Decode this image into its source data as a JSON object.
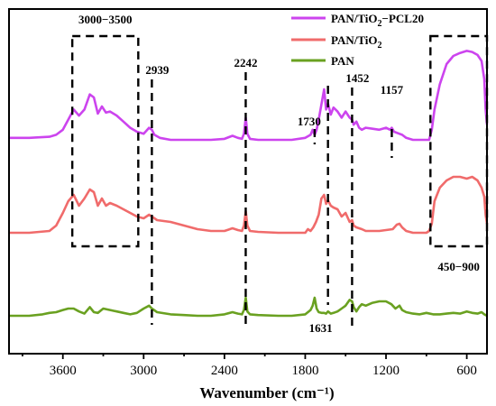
{
  "chart_data": {
    "type": "line",
    "title": "",
    "xlabel": "Wavenumber (cm⁻¹)",
    "ylabel": "",
    "xlim": [
      4000,
      450
    ],
    "x_reversed": true,
    "x_ticks": [
      "3600",
      "3000",
      "2400",
      "1800",
      "1200",
      "600"
    ],
    "x_tick_values": [
      3600,
      3000,
      2400,
      1800,
      1200,
      600
    ],
    "legend_position": "top-right",
    "series": [
      {
        "name": "PAN/TiO₂−PCL20",
        "legend_main": "PAN/TiO",
        "legend_sub": "2",
        "legend_tail": "−PCL20",
        "color": "#cc44ee",
        "x": [
          4000,
          3850,
          3700,
          3650,
          3600,
          3560,
          3520,
          3480,
          3440,
          3400,
          3370,
          3340,
          3310,
          3280,
          3250,
          3200,
          3150,
          3100,
          3050,
          3000,
          2960,
          2939,
          2920,
          2880,
          2800,
          2700,
          2600,
          2500,
          2400,
          2340,
          2300,
          2270,
          2255,
          2242,
          2230,
          2210,
          2150,
          2000,
          1900,
          1800,
          1760,
          1745,
          1730,
          1715,
          1700,
          1680,
          1660,
          1645,
          1631,
          1610,
          1590,
          1560,
          1530,
          1500,
          1470,
          1452,
          1440,
          1420,
          1400,
          1380,
          1350,
          1300,
          1250,
          1200,
          1170,
          1157,
          1140,
          1100,
          1080,
          1050,
          1000,
          950,
          900,
          880,
          860,
          840,
          800,
          750,
          700,
          650,
          600,
          560,
          520,
          490,
          470,
          460,
          450
        ],
        "y": [
          0.02,
          0.02,
          0.03,
          0.05,
          0.1,
          0.2,
          0.3,
          0.24,
          0.3,
          0.45,
          0.42,
          0.26,
          0.33,
          0.27,
          0.28,
          0.24,
          0.18,
          0.12,
          0.08,
          0.06,
          0.12,
          0.1,
          0.05,
          0.02,
          0.0,
          0.0,
          0.0,
          0.0,
          0.01,
          0.04,
          0.02,
          0.01,
          0.06,
          0.22,
          0.06,
          0.01,
          0.0,
          0.0,
          0.0,
          0.02,
          0.05,
          0.1,
          0.05,
          0.1,
          0.2,
          0.35,
          0.5,
          0.3,
          0.36,
          0.25,
          0.32,
          0.28,
          0.22,
          0.28,
          0.22,
          0.2,
          0.15,
          0.18,
          0.12,
          0.1,
          0.12,
          0.11,
          0.1,
          0.12,
          0.1,
          0.12,
          0.08,
          0.06,
          0.05,
          0.02,
          0.0,
          0.0,
          0.0,
          0.0,
          0.1,
          0.3,
          0.55,
          0.75,
          0.83,
          0.86,
          0.88,
          0.87,
          0.84,
          0.78,
          0.6,
          0.3,
          0.15
        ]
      },
      {
        "name": "PAN/TiO₂",
        "legend_main": "PAN/TiO",
        "legend_sub": "2",
        "legend_tail": "",
        "color": "#f06b6b",
        "x": [
          4000,
          3850,
          3700,
          3650,
          3600,
          3560,
          3520,
          3480,
          3440,
          3400,
          3370,
          3340,
          3310,
          3280,
          3250,
          3200,
          3150,
          3100,
          3050,
          3000,
          2960,
          2939,
          2900,
          2800,
          2700,
          2600,
          2500,
          2400,
          2340,
          2300,
          2270,
          2255,
          2242,
          2230,
          2210,
          2150,
          2000,
          1900,
          1800,
          1780,
          1760,
          1740,
          1720,
          1700,
          1680,
          1660,
          1645,
          1631,
          1610,
          1590,
          1560,
          1530,
          1500,
          1470,
          1452,
          1440,
          1420,
          1400,
          1380,
          1350,
          1300,
          1250,
          1200,
          1150,
          1120,
          1100,
          1080,
          1050,
          1000,
          950,
          900,
          880,
          860,
          840,
          800,
          750,
          700,
          650,
          600,
          560,
          520,
          490,
          470,
          460,
          450
        ],
        "y": [
          0.0,
          0.0,
          0.02,
          0.08,
          0.22,
          0.35,
          0.42,
          0.3,
          0.38,
          0.48,
          0.45,
          0.3,
          0.38,
          0.3,
          0.33,
          0.3,
          0.26,
          0.22,
          0.18,
          0.16,
          0.2,
          0.18,
          0.14,
          0.12,
          0.08,
          0.04,
          0.02,
          0.02,
          0.05,
          0.03,
          0.02,
          0.08,
          0.24,
          0.08,
          0.02,
          0.01,
          0.0,
          0.0,
          0.0,
          0.04,
          0.02,
          0.06,
          0.12,
          0.2,
          0.38,
          0.42,
          0.32,
          0.36,
          0.3,
          0.28,
          0.26,
          0.18,
          0.22,
          0.12,
          0.14,
          0.08,
          0.06,
          0.05,
          0.04,
          0.02,
          0.02,
          0.02,
          0.03,
          0.04,
          0.09,
          0.1,
          0.06,
          0.02,
          0.0,
          0.0,
          0.0,
          0.02,
          0.1,
          0.35,
          0.5,
          0.58,
          0.62,
          0.62,
          0.6,
          0.62,
          0.58,
          0.5,
          0.4,
          0.2,
          0.1
        ]
      },
      {
        "name": "PAN",
        "legend_main": "PAN",
        "legend_sub": "",
        "legend_tail": "",
        "color": "#6aa121",
        "x": [
          4000,
          3850,
          3750,
          3700,
          3650,
          3600,
          3560,
          3520,
          3480,
          3440,
          3400,
          3370,
          3340,
          3300,
          3250,
          3200,
          3150,
          3100,
          3050,
          3000,
          2960,
          2939,
          2900,
          2800,
          2700,
          2600,
          2500,
          2400,
          2340,
          2300,
          2270,
          2255,
          2242,
          2230,
          2210,
          2150,
          2000,
          1900,
          1800,
          1760,
          1745,
          1730,
          1715,
          1700,
          1680,
          1660,
          1645,
          1631,
          1610,
          1590,
          1560,
          1530,
          1500,
          1470,
          1452,
          1440,
          1420,
          1400,
          1380,
          1350,
          1300,
          1250,
          1200,
          1160,
          1130,
          1100,
          1080,
          1050,
          1000,
          950,
          900,
          850,
          800,
          750,
          700,
          650,
          600,
          560,
          520,
          490,
          470,
          460,
          450
        ],
        "y": [
          0.0,
          0.0,
          0.02,
          0.04,
          0.05,
          0.08,
          0.1,
          0.1,
          0.06,
          0.03,
          0.12,
          0.05,
          0.04,
          0.1,
          0.08,
          0.06,
          0.04,
          0.02,
          0.04,
          0.1,
          0.14,
          0.1,
          0.05,
          0.02,
          0.01,
          0.0,
          0.0,
          0.02,
          0.05,
          0.03,
          0.02,
          0.08,
          0.25,
          0.06,
          0.02,
          0.01,
          0.0,
          0.0,
          0.02,
          0.08,
          0.14,
          0.25,
          0.1,
          0.05,
          0.04,
          0.04,
          0.03,
          0.06,
          0.03,
          0.04,
          0.06,
          0.1,
          0.14,
          0.22,
          0.2,
          0.12,
          0.06,
          0.12,
          0.16,
          0.14,
          0.18,
          0.2,
          0.2,
          0.16,
          0.1,
          0.14,
          0.08,
          0.05,
          0.03,
          0.02,
          0.04,
          0.02,
          0.02,
          0.03,
          0.04,
          0.03,
          0.06,
          0.04,
          0.03,
          0.05,
          0.02,
          0.01,
          0.0
        ]
      }
    ],
    "annotations": [
      {
        "label": "3000−3500",
        "type": "box",
        "x_from": 3530,
        "x_to": 3040,
        "y_band": "top-pair"
      },
      {
        "label": "450−900",
        "type": "box",
        "x_from": 870,
        "x_to": 450,
        "y_band": "top-pair"
      },
      {
        "label": "2939",
        "type": "line",
        "x": 2939
      },
      {
        "label": "2242",
        "type": "line",
        "x": 2242
      },
      {
        "label": "1730",
        "type": "line",
        "x": 1730
      },
      {
        "label": "1631",
        "type": "line",
        "x": 1631
      },
      {
        "label": "1452",
        "type": "line",
        "x": 1452
      },
      {
        "label": "1157",
        "type": "line",
        "x": 1157
      }
    ]
  }
}
